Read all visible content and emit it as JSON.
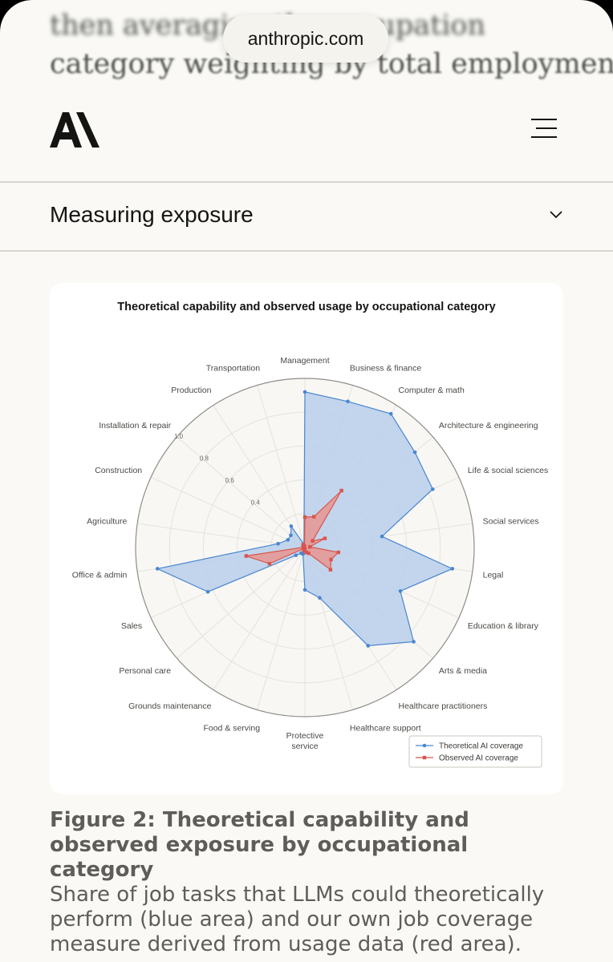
{
  "browser": {
    "url": "anthropic.com"
  },
  "article": {
    "above_text_line1": "then averaging the occupation",
    "above_text_line2": "category weighting by total employment."
  },
  "header": {
    "logo_alt": "AI",
    "menu_icon": "hamburger-menu-icon"
  },
  "accordion": {
    "title": "Measuring exposure",
    "icon": "chevron-down-icon"
  },
  "chart_data": {
    "type": "radar",
    "title": "Theoretical capability and observed usage by occupational category",
    "categories": [
      "Management",
      "Business & finance",
      "Computer & math",
      "Architecture & engineering",
      "Life & social sciences",
      "Social services",
      "Legal",
      "Education & library",
      "Arts & media",
      "Healthcare practitioners",
      "Healthcare support",
      "Protective service",
      "Food & serving",
      "Grounds maintenance",
      "Personal care",
      "Sales",
      "Office & admin",
      "Agriculture",
      "Construction",
      "Installation & repair",
      "Production",
      "Transportation"
    ],
    "rticks": [
      0.4,
      0.6,
      0.8,
      1.0
    ],
    "rlim": [
      0,
      1.0
    ],
    "grid": true,
    "legend_position": "bottom-right",
    "series": [
      {
        "name": "Theoretical AI coverage",
        "color": "#4a86d0",
        "fill": "#b8cfeb",
        "values": [
          0.92,
          0.9,
          0.94,
          0.86,
          0.83,
          0.46,
          0.88,
          0.62,
          0.85,
          0.69,
          0.31,
          0.25,
          0.04,
          0.04,
          0.07,
          0.63,
          0.88,
          0.16,
          0.11,
          0.11,
          0.15,
          0.02
        ]
      },
      {
        "name": "Observed AI coverage",
        "color": "#d9544d",
        "fill": "#e89590",
        "values": [
          0.18,
          0.19,
          0.4,
          0.06,
          0.13,
          0.03,
          0.2,
          0.17,
          0.2,
          0.04,
          0.03,
          0.01,
          0.02,
          0.01,
          0.01,
          0.23,
          0.35,
          0.01,
          0.01,
          0.01,
          0.02,
          0.01
        ]
      }
    ]
  },
  "figure": {
    "title": "Figure 2: Theoretical capability and observed exposure by occupational category",
    "description": "Share of job tasks that LLMs could theoretically perform (blue area) and our own job coverage measure derived from usage data (red area)."
  }
}
